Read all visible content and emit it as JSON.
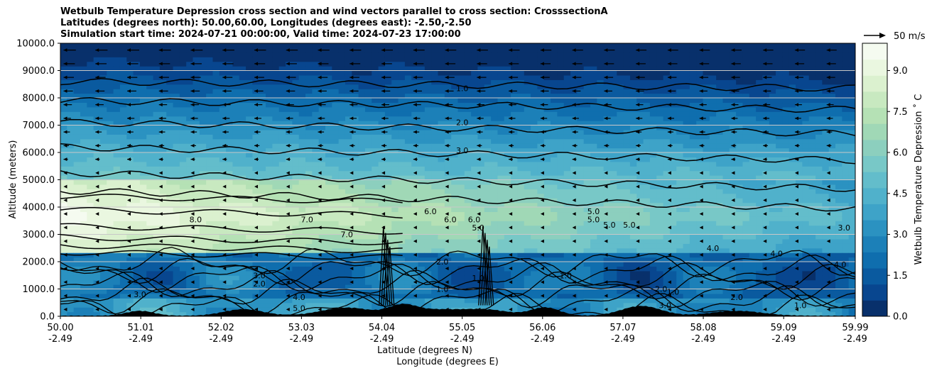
{
  "chart_data": {
    "type": "contour",
    "title_lines": [
      "Wetbulb Temperature Depression cross section and wind vectors parallel to cross section: CrosssectionA",
      "Latitudes (degrees north): 50.00,60.00, Longitudes (degrees east): -2.50,-2.50",
      "Simulation start time: 2024-07-21 00:00:00, Valid time: 2024-07-23 17:00:00"
    ],
    "ylabel": "Altitude (meters)",
    "xlabel_lines": [
      "Latitude (degrees N)",
      "Longitude (degrees E)"
    ],
    "ylim": [
      0,
      10000
    ],
    "y_ticks": [
      "0.0",
      "1000.0",
      "2000.0",
      "3000.0",
      "4000.0",
      "5000.0",
      "6000.0",
      "7000.0",
      "8000.0",
      "9000.0",
      "10000.0"
    ],
    "x_ticks": [
      {
        "lat": "50.00",
        "lon": "-2.49"
      },
      {
        "lat": "51.01",
        "lon": "-2.49"
      },
      {
        "lat": "52.02",
        "lon": "-2.49"
      },
      {
        "lat": "53.03",
        "lon": "-2.49"
      },
      {
        "lat": "54.04",
        "lon": "-2.49"
      },
      {
        "lat": "55.05",
        "lon": "-2.49"
      },
      {
        "lat": "56.06",
        "lon": "-2.49"
      },
      {
        "lat": "57.07",
        "lon": "-2.49"
      },
      {
        "lat": "58.08",
        "lon": "-2.49"
      },
      {
        "lat": "59.09",
        "lon": "-2.49"
      },
      {
        "lat": "59.99",
        "lon": "-2.49"
      }
    ],
    "grid": "horizontal",
    "colorbar": {
      "label": "Wetbulb Temperature Depression ˚ C",
      "ticks": [
        "0.0",
        "1.5",
        "3.0",
        "4.5",
        "6.0",
        "7.5",
        "9.0"
      ],
      "range": [
        0,
        10
      ],
      "colors": [
        "#08306b",
        "#08468f",
        "#0a5a9f",
        "#0f6eae",
        "#1c80b8",
        "#2b92c1",
        "#3ea3c8",
        "#50b1cb",
        "#63bdcb",
        "#78c8c7",
        "#8ccfbe",
        "#a0d8b6",
        "#b5e1b5",
        "#c8e9c0",
        "#dbf1cf",
        "#eaf7e0",
        "#f5fbf0"
      ]
    },
    "vector_key": "50 m/s",
    "contour_labels": [
      {
        "text": "1.0",
        "lat": 55.05,
        "alt": 8350
      },
      {
        "text": "2.0",
        "lat": 55.05,
        "alt": 7100
      },
      {
        "text": "3.0",
        "lat": 55.05,
        "alt": 6080
      },
      {
        "text": "8.0",
        "lat": 51.7,
        "alt": 3550
      },
      {
        "text": "7.0",
        "lat": 53.1,
        "alt": 3550
      },
      {
        "text": "7.0",
        "lat": 53.6,
        "alt": 3000
      },
      {
        "text": "6.0",
        "lat": 54.65,
        "alt": 3850
      },
      {
        "text": "6.0",
        "lat": 54.9,
        "alt": 3550
      },
      {
        "text": "6.0",
        "lat": 55.2,
        "alt": 3550
      },
      {
        "text": "5.0",
        "lat": 55.25,
        "alt": 3250
      },
      {
        "text": "5.0",
        "lat": 56.7,
        "alt": 3850
      },
      {
        "text": "5.0",
        "lat": 56.7,
        "alt": 3550
      },
      {
        "text": "5.0",
        "lat": 56.9,
        "alt": 3350
      },
      {
        "text": "5.0",
        "lat": 57.15,
        "alt": 3350
      },
      {
        "text": "4.0",
        "lat": 58.2,
        "alt": 2500
      },
      {
        "text": "4.0",
        "lat": 59.0,
        "alt": 2300
      },
      {
        "text": "4.0",
        "lat": 59.8,
        "alt": 1900
      },
      {
        "text": "3.0",
        "lat": 59.85,
        "alt": 3250
      },
      {
        "text": "3.0",
        "lat": 57.6,
        "alt": 400
      },
      {
        "text": "3.0",
        "lat": 52.5,
        "alt": 1500
      },
      {
        "text": "3.0",
        "lat": 51.0,
        "alt": 800
      },
      {
        "text": "2.0",
        "lat": 54.8,
        "alt": 2000
      },
      {
        "text": "2.0",
        "lat": 52.5,
        "alt": 1200
      },
      {
        "text": "2.0",
        "lat": 57.55,
        "alt": 1000
      },
      {
        "text": "2.0",
        "lat": 58.5,
        "alt": 700
      },
      {
        "text": "1.0",
        "lat": 55.25,
        "alt": 1400
      },
      {
        "text": "1.0",
        "lat": 54.8,
        "alt": 1000
      },
      {
        "text": "1.0",
        "lat": 56.35,
        "alt": 1500
      },
      {
        "text": "1.0",
        "lat": 59.3,
        "alt": 400
      },
      {
        "text": "1.0",
        "lat": 57.7,
        "alt": 900
      },
      {
        "text": "5.0",
        "lat": 53.0,
        "alt": 300
      },
      {
        "text": "4.0",
        "lat": 53.0,
        "alt": 700
      }
    ],
    "terrain_peaks_lat": [
      51.0,
      52.3,
      53.6,
      54.3,
      54.7,
      55.3,
      56.1,
      57.3,
      58.5
    ]
  }
}
